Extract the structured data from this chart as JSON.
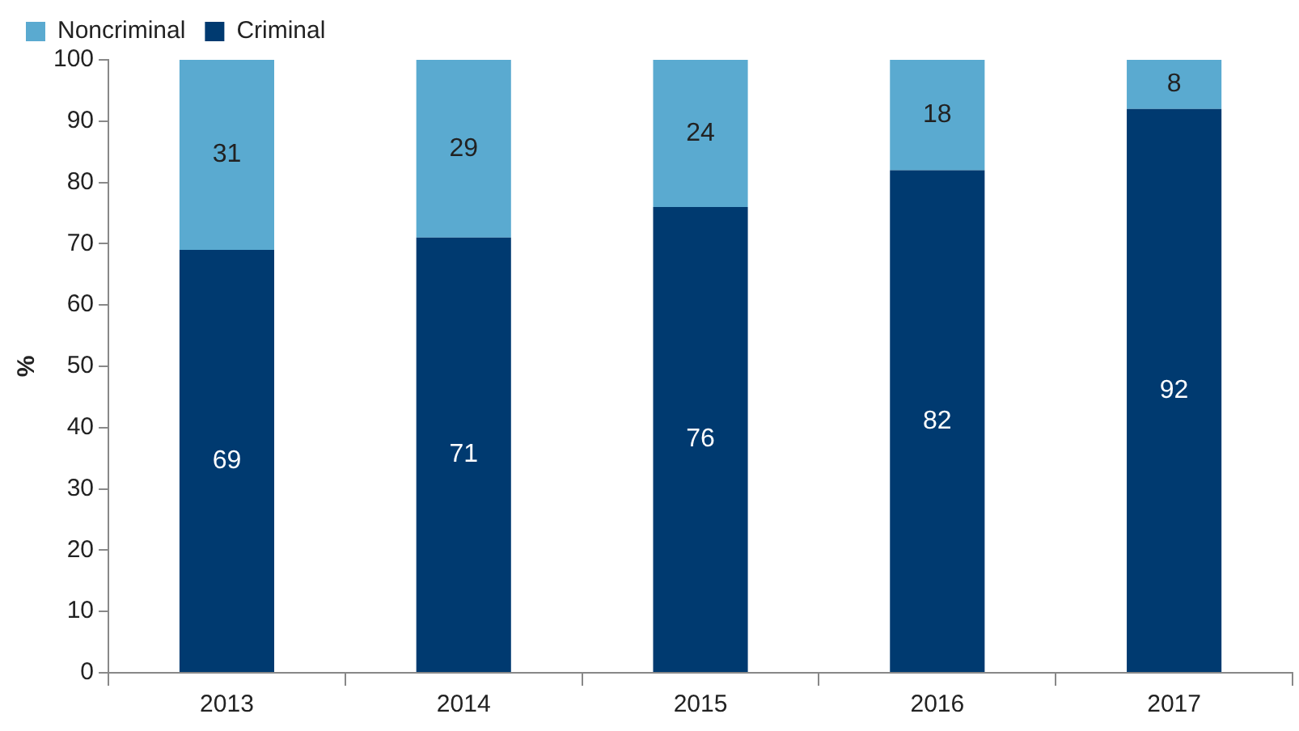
{
  "chart_data": {
    "type": "bar",
    "stacked": true,
    "ylabel": "%",
    "categories": [
      "2013",
      "2014",
      "2015",
      "2016",
      "2017"
    ],
    "series": [
      {
        "name": "Criminal",
        "color": "#003a70",
        "values": [
          69,
          71,
          76,
          82,
          92
        ]
      },
      {
        "name": "Noncriminal",
        "color": "#5aaad0",
        "values": [
          31,
          29,
          24,
          18,
          8
        ]
      }
    ],
    "ylim": [
      0,
      100
    ],
    "yticks": [
      0,
      10,
      20,
      30,
      40,
      50,
      60,
      70,
      80,
      90,
      100
    ],
    "grid": false,
    "legend": "top left",
    "data_labels": true
  }
}
